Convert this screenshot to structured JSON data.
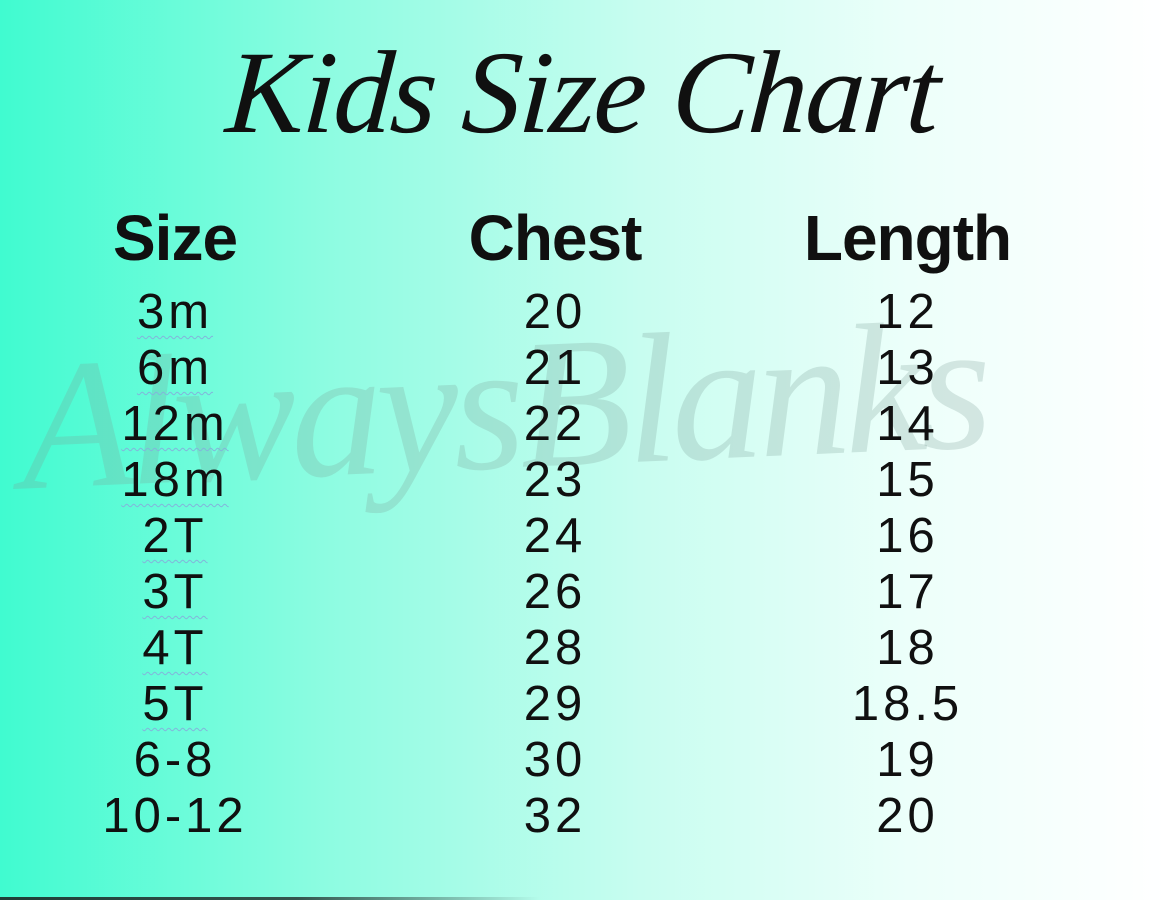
{
  "title": "Kids Size Chart",
  "watermark": "AlwaysBlanks",
  "chart_data": {
    "type": "table",
    "title": "Kids Size Chart",
    "columns": [
      "Size",
      "Chest",
      "Length"
    ],
    "rows": [
      [
        "3m",
        20,
        12
      ],
      [
        "6m",
        21,
        13
      ],
      [
        "12m",
        22,
        14
      ],
      [
        "18m",
        23,
        15
      ],
      [
        "2T",
        24,
        16
      ],
      [
        "3T",
        26,
        17
      ],
      [
        "4T",
        28,
        18
      ],
      [
        "5T",
        29,
        18.5
      ],
      [
        "6-8",
        30,
        19
      ],
      [
        "10-12",
        32,
        20
      ]
    ],
    "spellcheck_underlined_sizes": [
      "3m",
      "6m",
      "12m",
      "18m",
      "2T",
      "3T",
      "4T",
      "5T"
    ],
    "watermark": "AlwaysBlanks"
  },
  "colors": {
    "background_left": "#40fbd0",
    "background_right": "#ffffff",
    "text": "#101010",
    "squiggle_underline": "#82b5db",
    "watermark_text": "#7d9e96",
    "bottom_edge_line": "#191c1c"
  }
}
